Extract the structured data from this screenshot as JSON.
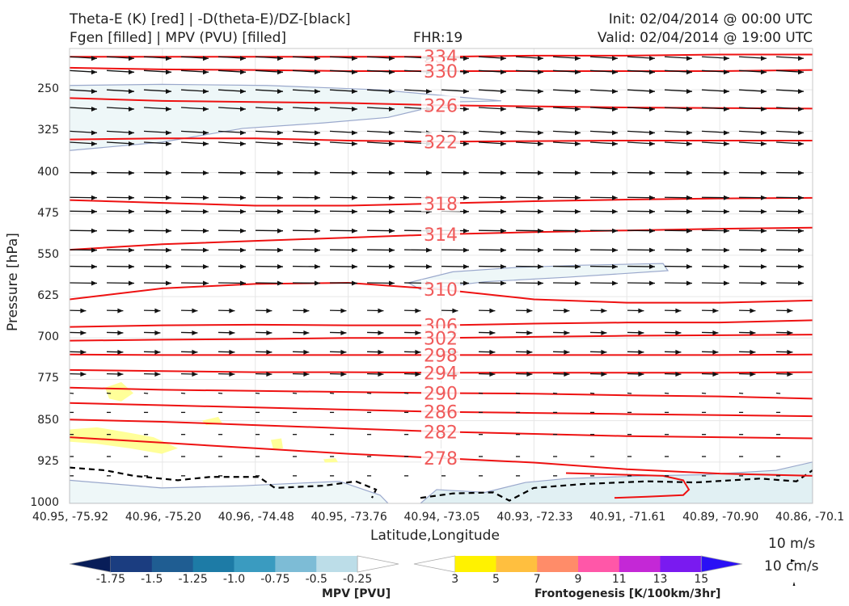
{
  "header": {
    "title_line1": "Theta-E (K) [red] | -D(theta-E)/DZ-[black]",
    "title_line2": "Fgen [filled] | MPV (PVU) [filled]",
    "fhr": "FHR:19",
    "init": "Init: 02/04/2014 @ 00:00 UTC",
    "valid": "Valid: 02/04/2014 @ 19:00 UTC"
  },
  "chart_data": {
    "type": "cross-section",
    "xlabel": "Latitude,Longitude",
    "ylabel": "Pressure [hPa]",
    "y_ticks": [
      "250",
      "325",
      "400",
      "475",
      "550",
      "625",
      "700",
      "775",
      "850",
      "925",
      "1000"
    ],
    "y_range": [
      175,
      1000
    ],
    "x_ticks": [
      "40.95, -75.92",
      "40.96, -75.20",
      "40.96, -74.48",
      "40.95, -73.76",
      "40.94, -73.05",
      "40.93, -72.33",
      "40.91, -71.61",
      "40.89, -70.90",
      "40.86, -70.1"
    ],
    "theta_e_contours": [
      {
        "label": "334",
        "p": [
          190,
          190,
          190,
          190,
          190,
          188,
          188,
          186,
          186
        ]
      },
      {
        "label": "330",
        "p": [
          210,
          213,
          214,
          216,
          216,
          216,
          216,
          216,
          214
        ]
      },
      {
        "label": "326",
        "p": [
          265,
          270,
          272,
          274,
          278,
          280,
          282,
          283,
          284
        ]
      },
      {
        "label": "322",
        "p": [
          340,
          338,
          338,
          342,
          344,
          343,
          342,
          342,
          342
        ]
      },
      {
        "label": "318",
        "p": [
          450,
          455,
          460,
          460,
          456,
          452,
          449,
          447,
          446
        ]
      },
      {
        "label": "314",
        "p": [
          540,
          530,
          524,
          518,
          512,
          508,
          505,
          502,
          500
        ]
      },
      {
        "label": "310",
        "p": [
          630,
          610,
          602,
          600,
          612,
          630,
          636,
          636,
          632
        ]
      },
      {
        "label": "306",
        "p": [
          680,
          677,
          676,
          677,
          677,
          674,
          672,
          672,
          668
        ]
      },
      {
        "label": "302",
        "p": [
          705,
          703,
          702,
          700,
          700,
          698,
          696,
          695,
          694
        ]
      },
      {
        "label": "298",
        "p": [
          730,
          731,
          731,
          731,
          731,
          731,
          731,
          731,
          730
        ]
      },
      {
        "label": "294",
        "p": [
          758,
          760,
          762,
          762,
          763,
          763,
          763,
          763,
          762
        ]
      },
      {
        "label": "290",
        "p": [
          790,
          794,
          796,
          798,
          800,
          801,
          804,
          806,
          810
        ]
      },
      {
        "label": "286",
        "p": [
          818,
          822,
          826,
          830,
          834,
          836,
          838,
          840,
          842
        ]
      },
      {
        "label": "282",
        "p": [
          848,
          852,
          858,
          864,
          870,
          874,
          878,
          880,
          882
        ]
      },
      {
        "label": "278",
        "p": [
          880,
          890,
          900,
          910,
          918,
          926,
          938,
          946,
          950
        ]
      }
    ],
    "mpv_levels": [
      "-1.75",
      "-1.5",
      "-1.25",
      "-1.0",
      "-0.75",
      "-0.5",
      "-0.25"
    ],
    "mpv_colors": [
      "#081d58",
      "#1b3d80",
      "#1f5d92",
      "#1d7ba6",
      "#3a9bc0",
      "#7dbcd6",
      "#bcdde8",
      "#ffffff"
    ],
    "mpv_label": "MPV [PVU]",
    "fgen_levels": [
      "3",
      "5",
      "7",
      "9",
      "11",
      "13",
      "15"
    ],
    "fgen_colors": [
      "#ffffff",
      "#fff200",
      "#ffbf3f",
      "#ff8c69",
      "#ff57a8",
      "#c428d6",
      "#7a1af0",
      "#2a10f5"
    ],
    "fgen_label": "Frontogenesis [K/100km/3hr]",
    "vector_ref_1": "10 m/s",
    "vector_ref_2": "10 cm/s",
    "grid": true
  }
}
